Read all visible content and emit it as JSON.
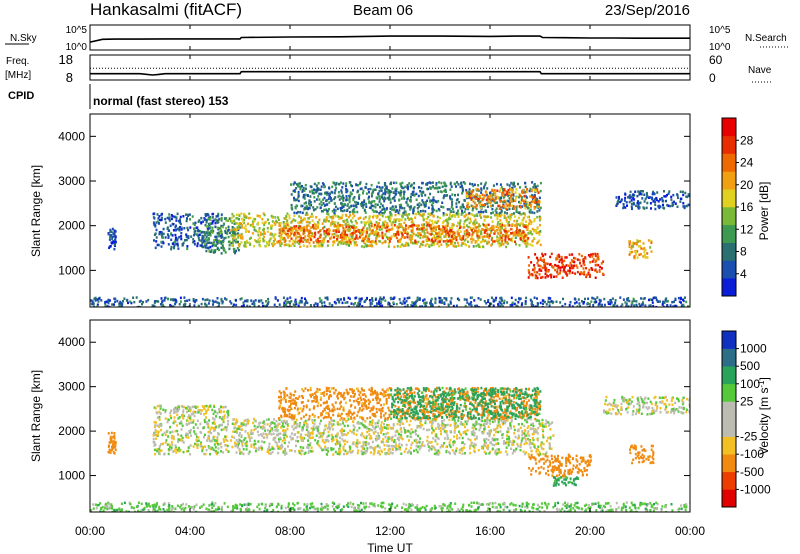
{
  "header": {
    "station": "Hankasalmi (fitACF)",
    "beam": "Beam 06",
    "date": "23/Sep/2016"
  },
  "strips": {
    "nsky": {
      "label": "N.Sky",
      "y_ticks": [
        "10^5",
        "10^0"
      ],
      "right_ticks": [
        "10^5",
        "10^0"
      ],
      "right_label": "N.Search",
      "right_legend_style": "dotted"
    },
    "freq": {
      "label": "Freq.",
      "unit": "[MHz]",
      "y_ticks": [
        "18",
        "8"
      ],
      "right_ticks": [
        "60",
        "0"
      ],
      "right_label": "Nave",
      "right_legend_style": "dotted"
    },
    "cpid": {
      "label": "CPID",
      "text": "normal (fast stereo) 153"
    }
  },
  "time_axis": {
    "ticks": [
      "00:00",
      "04:00",
      "08:00",
      "12:00",
      "16:00",
      "20:00",
      "00:00"
    ],
    "label": "Time UT"
  },
  "colors": {
    "power": [
      "#0a1ed8",
      "#1a4fb0",
      "#2a7070",
      "#3d9a50",
      "#7ab838",
      "#e0d020",
      "#f0a010",
      "#ee6a00",
      "#e82e00",
      "#e80000"
    ],
    "velocity": [
      "#e00000",
      "#ee3d00",
      "#f08a10",
      "#f2c022",
      "#bdbcb2",
      "#bdbcb2",
      "#56c93a",
      "#2aa35a",
      "#2c6d88",
      "#1030c0"
    ]
  },
  "chart_data": [
    {
      "type": "line",
      "name": "N.Sky / N.Search",
      "x_range": [
        0,
        24
      ],
      "x": [
        0,
        0.5,
        1,
        2,
        3,
        4,
        5,
        6,
        6.05,
        8,
        10,
        12,
        14,
        16,
        17,
        18,
        18.1,
        19,
        20,
        21,
        22,
        23,
        24
      ],
      "series": [
        {
          "values": [
            0.3,
            0.42,
            0.43,
            0.43,
            0.44,
            0.44,
            0.44,
            0.44,
            0.5,
            0.52,
            0.53,
            0.56,
            0.56,
            0.55,
            0.56,
            0.56,
            0.5,
            0.49,
            0.48,
            0.48,
            0.47,
            0.47,
            0.47
          ]
        }
      ]
    },
    {
      "type": "line",
      "name": "Freq. / Nave",
      "x_range": [
        0,
        24
      ],
      "y_ticks": [
        8,
        18
      ],
      "y_range": [
        8,
        18
      ],
      "x": [
        0,
        0.25,
        2,
        2.5,
        2.7,
        3,
        6,
        6.05,
        18,
        18.05,
        24
      ],
      "series": [
        {
          "values": [
            10.4,
            10.4,
            10.4,
            9.8,
            10.0,
            10.4,
            10.4,
            11.3,
            11.3,
            10.4,
            10.4
          ]
        },
        {
          "values": [
            12.9,
            12.9,
            12.9,
            12.9,
            12.9,
            12.9,
            12.9,
            12.9,
            12.9,
            12.9,
            12.9
          ]
        }
      ]
    },
    {
      "type": "heatmap",
      "title": "",
      "x_ticks": [
        "00:00",
        "04:00",
        "08:00",
        "12:00",
        "16:00",
        "20:00",
        "00:00"
      ],
      "x_range": [
        0,
        24
      ],
      "xlabel": "Time UT",
      "ylabel": "Slant Range [km]",
      "y_ticks": [
        1000,
        2000,
        3000,
        4000
      ],
      "y_range": [
        180,
        4500
      ],
      "colorbar_label": "Power [dB]",
      "colorbar_ticks": [
        4,
        8,
        12,
        16,
        20,
        24,
        28
      ],
      "colorbar_range": [
        0,
        32
      ],
      "echo_regions": [
        {
          "t": [
            0.7,
            1.0
          ],
          "range": [
            1500,
            2000
          ],
          "value": 4
        },
        {
          "t": [
            2.5,
            5.3
          ],
          "range": [
            1500,
            2300
          ],
          "value": 6
        },
        {
          "t": [
            4.5,
            6.0
          ],
          "range": [
            1400,
            2200
          ],
          "value": 10
        },
        {
          "t": [
            5.6,
            18.0
          ],
          "range": [
            1550,
            2300
          ],
          "value": 17
        },
        {
          "t": [
            7.5,
            17.5
          ],
          "range": [
            1650,
            2050
          ],
          "value": 24
        },
        {
          "t": [
            8.0,
            18.0
          ],
          "range": [
            2300,
            3000
          ],
          "value": 8
        },
        {
          "t": [
            15.0,
            18.0
          ],
          "range": [
            2400,
            2850
          ],
          "value": 22
        },
        {
          "t": [
            17.5,
            20.5
          ],
          "range": [
            850,
            1400
          ],
          "value": 27
        },
        {
          "t": [
            21.5,
            22.5
          ],
          "range": [
            1300,
            1700
          ],
          "value": 20
        },
        {
          "t": [
            21.0,
            24.0
          ],
          "range": [
            2400,
            2800
          ],
          "value": 5
        },
        {
          "t": [
            0.0,
            24.0
          ],
          "range": [
            200,
            420
          ],
          "value": 6
        }
      ]
    },
    {
      "type": "heatmap",
      "title": "",
      "x_ticks": [
        "00:00",
        "04:00",
        "08:00",
        "12:00",
        "16:00",
        "20:00",
        "00:00"
      ],
      "x_range": [
        0,
        24
      ],
      "xlabel": "Time UT",
      "ylabel": "Slant Range [km]",
      "y_ticks": [
        1000,
        2000,
        3000,
        4000
      ],
      "y_range": [
        180,
        4500
      ],
      "colorbar_label": "Velocity [m s-1]",
      "colorbar_ticks": [
        -1000,
        -500,
        -100,
        -25,
        25,
        100,
        500,
        1000
      ],
      "echo_regions": [
        {
          "t": [
            0.7,
            1.0
          ],
          "range": [
            1500,
            2000
          ],
          "value": -200
        },
        {
          "t": [
            2.5,
            5.5
          ],
          "range": [
            1500,
            2600
          ],
          "value": 0
        },
        {
          "t": [
            5.6,
            18.5
          ],
          "range": [
            1500,
            2300
          ],
          "value": 0
        },
        {
          "t": [
            7.5,
            18.0
          ],
          "range": [
            2300,
            3000
          ],
          "value": -150
        },
        {
          "t": [
            12.0,
            18.0
          ],
          "range": [
            2300,
            3000
          ],
          "value": 150
        },
        {
          "t": [
            17.5,
            20.0
          ],
          "range": [
            1000,
            1500
          ],
          "value": -300
        },
        {
          "t": [
            18.5,
            19.5
          ],
          "range": [
            800,
            1000
          ],
          "value": 150
        },
        {
          "t": [
            21.5,
            22.5
          ],
          "range": [
            1300,
            1700
          ],
          "value": -200
        },
        {
          "t": [
            20.5,
            24.0
          ],
          "range": [
            2400,
            2800
          ],
          "value": 0
        },
        {
          "t": [
            0.0,
            24.0
          ],
          "range": [
            200,
            420
          ],
          "value": 60
        }
      ]
    }
  ]
}
